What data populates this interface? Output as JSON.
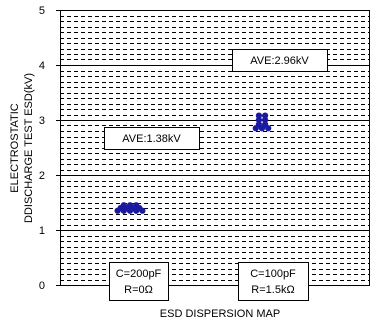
{
  "chart_data": {
    "type": "scatter",
    "title": "",
    "xlabel": "ESD DISPERSION MAP",
    "ylabel_lines": [
      "ELECTROSTATIC",
      "DDISCHARGE TEST ESD(kV)"
    ],
    "ylim": [
      0,
      5
    ],
    "y_ticks": [
      "0",
      "1",
      "2",
      "3",
      "4",
      "5"
    ],
    "grid": true,
    "categories": [
      {
        "lines": [
          "C=200pF",
          "R=0Ω"
        ]
      },
      {
        "lines": [
          "C=100pF",
          "R=1.5kΩ"
        ]
      }
    ],
    "series": [
      {
        "category": 0,
        "values": [
          1.45,
          1.45,
          1.45,
          1.4,
          1.4,
          1.4,
          1.4,
          1.35,
          1.35,
          1.35,
          1.35,
          1.35
        ],
        "annotation": "AVE:1.38kV"
      },
      {
        "category": 1,
        "values": [
          3.08,
          3.08,
          3.0,
          3.0,
          2.92,
          2.92,
          2.85,
          2.85,
          2.85
        ],
        "annotation": "AVE:2.96kV"
      }
    ],
    "marker_color": "#1a1aa0"
  }
}
